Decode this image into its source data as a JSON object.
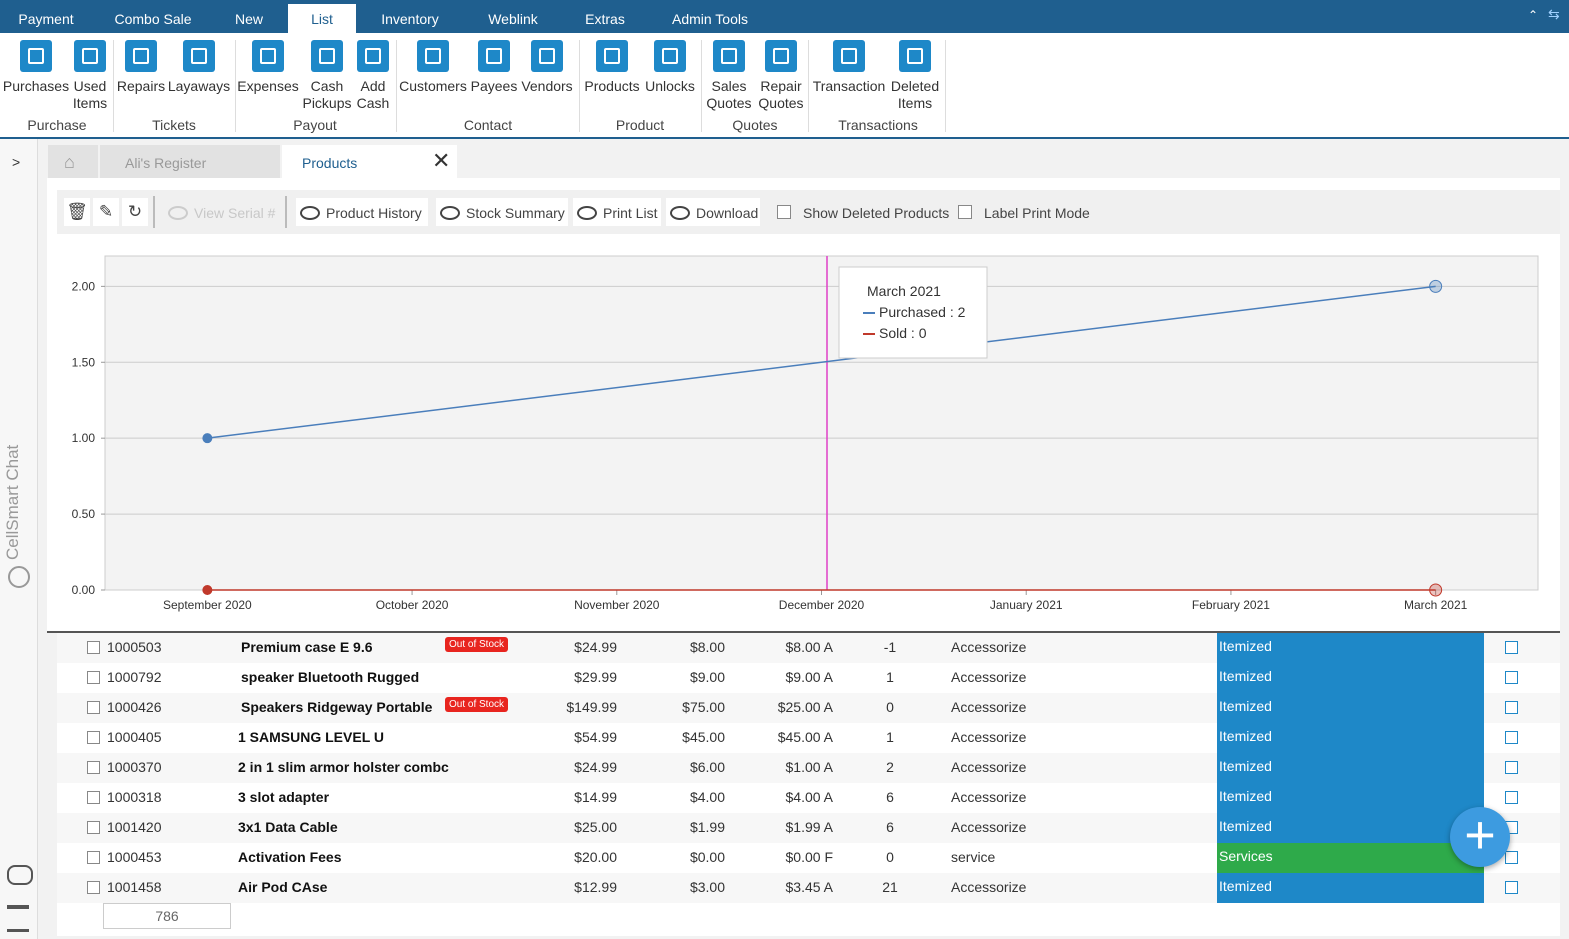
{
  "menu": {
    "tabs": [
      "Payment",
      "Combo Sale",
      "New",
      "List",
      "Inventory",
      "Weblink",
      "Extras",
      "Admin Tools"
    ],
    "active": 3
  },
  "ribbon": {
    "groups": [
      {
        "label": "Purchase",
        "items": [
          [
            "Purchases"
          ],
          [
            "Used",
            "Items"
          ]
        ]
      },
      {
        "label": "Tickets",
        "items": [
          [
            "Repairs"
          ],
          [
            "Layaways"
          ]
        ]
      },
      {
        "label": "Payout",
        "items": [
          [
            "Expenses"
          ],
          [
            "Cash",
            "Pickups"
          ],
          [
            "Add",
            "Cash"
          ]
        ]
      },
      {
        "label": "Contact",
        "items": [
          [
            "Customers"
          ],
          [
            "Payees"
          ],
          [
            "Vendors"
          ]
        ]
      },
      {
        "label": "Product",
        "items": [
          [
            "Products"
          ],
          [
            "Unlocks"
          ]
        ]
      },
      {
        "label": "Quotes",
        "items": [
          [
            "Sales",
            "Quotes"
          ],
          [
            "Repair",
            "Quotes"
          ]
        ]
      },
      {
        "label": "Transactions",
        "items": [
          [
            "Transaction"
          ],
          [
            "Deleted",
            "Items"
          ]
        ]
      }
    ]
  },
  "sidebar": {
    "chat": "CellSmart Chat"
  },
  "tabs": [
    "Ali's Register",
    "Products"
  ],
  "toolbar": {
    "buttons": [
      "View Serial #",
      "Product History",
      "Stock Summary",
      "Print List",
      "Download"
    ],
    "checkboxes": [
      "Show Deleted Products",
      "Label Print Mode"
    ]
  },
  "chart_data": {
    "type": "line",
    "categories": [
      "September 2020",
      "October 2020",
      "November 2020",
      "December 2020",
      "January 2021",
      "February 2021",
      "March 2021"
    ],
    "series": [
      {
        "name": "Purchased",
        "color": "#4a7ebb",
        "x": [
          "September 2020",
          "March 2021"
        ],
        "values": [
          1,
          2
        ]
      },
      {
        "name": "Sold",
        "color": "#c0392b",
        "x": [
          "September 2020",
          "March 2021"
        ],
        "values": [
          0,
          0
        ]
      }
    ],
    "ylim": [
      0,
      2.2
    ],
    "yticks": [
      {
        "value": 0,
        "label": "0.00"
      },
      {
        "value": 0.5,
        "label": "0.50"
      },
      {
        "value": 1,
        "label": "1.00"
      },
      {
        "value": 1.5,
        "label": "1.50"
      },
      {
        "value": 2,
        "label": "2.00"
      }
    ],
    "grid": true,
    "tooltip": {
      "title": "March 2021",
      "lines": [
        "Purchased : 2",
        "Sold : 0"
      ]
    }
  },
  "table": {
    "rows": [
      {
        "id": "1000503",
        "name": "Premium  case E  9.6",
        "badge": "Out of Stock",
        "price": "$24.99",
        "cost": "$8.00",
        "cost2": "$8.00 A",
        "qty": -1,
        "category": "Accessorize",
        "type": "Itemized"
      },
      {
        "id": "1000792",
        "name": "speaker Bluetooth Rugged",
        "price": "$29.99",
        "cost": "$9.00",
        "cost2": "$9.00 A",
        "qty": 1,
        "category": "Accessorize",
        "type": "Itemized"
      },
      {
        "id": "1000426",
        "name": "Speakers Ridgeway Portable",
        "badge": "Out of Stock",
        "price": "$149.99",
        "cost": "$75.00",
        "cost2": "$25.00 A",
        "qty": 0,
        "category": "Accessorize",
        "type": "Itemized"
      },
      {
        "id": "1000405",
        "name": "1 SAMSUNG LEVEL U",
        "price": "$54.99",
        "cost": "$45.00",
        "cost2": "$45.00 A",
        "qty": 1,
        "category": "Accessorize",
        "type": "Itemized"
      },
      {
        "id": "1000370",
        "name": "2 in 1 slim armor holster combc",
        "price": "$24.99",
        "cost": "$6.00",
        "cost2": "$1.00 A",
        "qty": 2,
        "category": "Accessorize",
        "type": "Itemized"
      },
      {
        "id": "1000318",
        "name": "3 slot adapter",
        "price": "$14.99",
        "cost": "$4.00",
        "cost2": "$4.00 A",
        "qty": 6,
        "category": "Accessorize",
        "type": "Itemized"
      },
      {
        "id": "1001420",
        "name": "3x1 Data Cable",
        "price": "$25.00",
        "cost": "$1.99",
        "cost2": "$1.99 A",
        "qty": 6,
        "category": "Accessorize",
        "type": "Itemized"
      },
      {
        "id": "1000453",
        "name": "Activation Fees",
        "price": "$20.00",
        "cost": "$0.00",
        "cost2": "$0.00 F",
        "qty": 0,
        "category": "service",
        "type": "Services"
      },
      {
        "id": "1001458",
        "name": "Air Pod CAse",
        "price": "$12.99",
        "cost": "$3.00",
        "cost2": "$3.45 A",
        "qty": 21,
        "category": "Accessorize",
        "type": "Itemized"
      }
    ]
  },
  "footer": {
    "count": "786"
  }
}
